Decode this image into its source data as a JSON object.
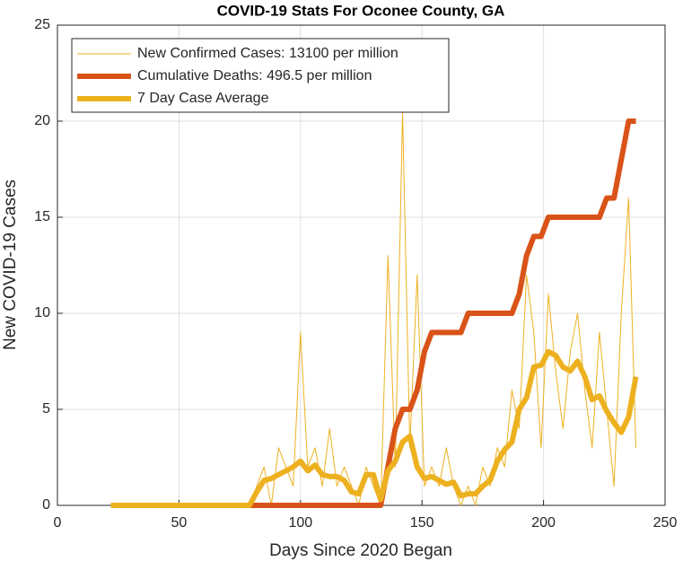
{
  "chart_data": {
    "type": "line",
    "title": "COVID-19 Stats For Oconee County, GA",
    "xlabel": "Days Since 2020 Began",
    "ylabel": "New COVID-19 Cases",
    "x": [
      22,
      25,
      28,
      31,
      34,
      37,
      40,
      43,
      46,
      49,
      52,
      55,
      58,
      61,
      64,
      67,
      70,
      73,
      76,
      79,
      82,
      85,
      88,
      91,
      94,
      97,
      100,
      103,
      106,
      109,
      112,
      115,
      118,
      121,
      124,
      127,
      130,
      133,
      136,
      139,
      142,
      145,
      148,
      151,
      154,
      157,
      160,
      163,
      166,
      169,
      172,
      175,
      178,
      181,
      184,
      187,
      190,
      193,
      196,
      199,
      202,
      205,
      208,
      211,
      214,
      217,
      220,
      223,
      226,
      229,
      232,
      235,
      238
    ],
    "series": [
      {
        "name": "New Confirmed Cases: 13100 per million",
        "color": "#EDB120",
        "width": 1,
        "values": [
          0,
          0,
          0,
          0,
          0,
          0,
          0,
          0,
          0,
          0,
          0,
          0,
          0,
          0,
          0,
          0,
          0,
          0,
          0,
          0,
          1,
          2,
          0,
          3,
          2,
          1,
          9,
          2,
          3,
          1,
          4,
          1,
          2,
          1,
          0,
          2,
          1,
          0,
          13,
          2,
          20.5,
          3,
          12,
          1,
          2,
          1,
          3,
          1,
          0,
          1,
          0,
          2,
          1,
          3,
          2,
          6,
          4,
          12,
          9,
          3,
          11,
          7,
          4,
          8,
          10,
          6,
          3,
          9,
          5,
          1,
          10,
          16,
          3
        ]
      },
      {
        "name": "Cumulative Deaths: 496.5 per million",
        "color": "#D95319",
        "width": 6,
        "values": [
          0,
          0,
          0,
          0,
          0,
          0,
          0,
          0,
          0,
          0,
          0,
          0,
          0,
          0,
          0,
          0,
          0,
          0,
          0,
          0,
          0,
          0,
          0,
          0,
          0,
          0,
          0,
          0,
          0,
          0,
          0,
          0,
          0,
          0,
          0,
          0,
          0,
          0,
          2,
          4,
          5,
          5,
          6,
          8,
          9,
          9,
          9,
          9,
          9,
          10,
          10,
          10,
          10,
          10,
          10,
          10,
          11,
          13,
          14,
          14,
          15,
          15,
          15,
          15,
          15,
          15,
          15,
          15,
          16,
          16,
          18,
          20,
          20
        ]
      },
      {
        "name": "7 Day Case Average",
        "color": "#EDB120",
        "width": 6,
        "values": [
          0,
          0,
          0,
          0,
          0,
          0,
          0,
          0,
          0,
          0,
          0,
          0,
          0,
          0,
          0,
          0,
          0,
          0,
          0,
          0,
          0.7,
          1.3,
          1.4,
          1.6,
          1.8,
          2.0,
          2.3,
          1.8,
          2.1,
          1.6,
          1.5,
          1.5,
          1.3,
          0.7,
          0.6,
          1.6,
          1.6,
          0.3,
          1.8,
          2.3,
          3.3,
          3.6,
          2.0,
          1.4,
          1.5,
          1.3,
          1.1,
          1.2,
          0.5,
          0.6,
          0.6,
          1.0,
          1.3,
          2.3,
          2.9,
          3.3,
          5.0,
          5.6,
          7.2,
          7.3,
          8.0,
          7.8,
          7.2,
          7.0,
          7.5,
          6.7,
          5.5,
          5.7,
          4.9,
          4.3,
          3.8,
          4.6,
          6.7
        ]
      }
    ],
    "xlim": [
      0,
      250
    ],
    "xticks": [
      0,
      50,
      100,
      150,
      200,
      250
    ],
    "ylim": [
      0,
      25
    ],
    "yticks": [
      0,
      5,
      10,
      15,
      20,
      25
    ],
    "grid": true,
    "legend": "upper left"
  }
}
